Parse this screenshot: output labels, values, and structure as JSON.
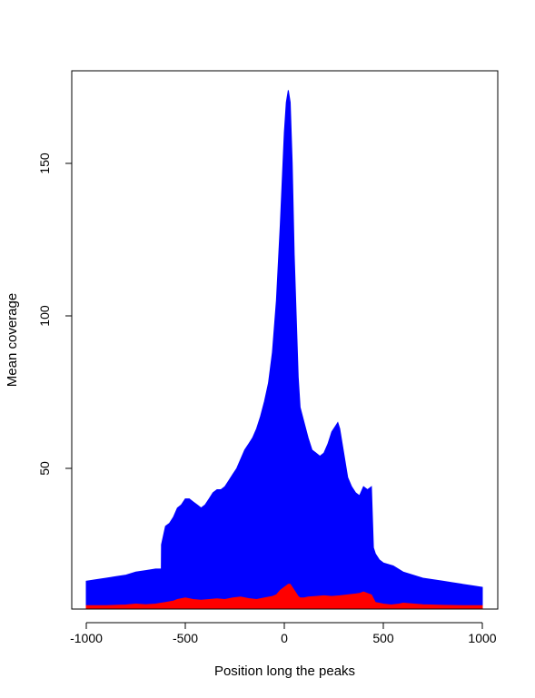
{
  "chart_data": {
    "type": "area",
    "title": "",
    "xlabel": "Position long the peaks",
    "ylabel": "Mean coverage",
    "xlim": [
      -1000,
      1000
    ],
    "ylim": [
      5,
      175
    ],
    "x_ticks": [
      -1000,
      -500,
      0,
      500,
      1000
    ],
    "y_ticks": [
      50,
      100,
      150
    ],
    "x_tick_labels": [
      "-1000",
      "-500",
      "0",
      "500",
      "1000"
    ],
    "y_tick_labels": [
      "50",
      "100",
      "150"
    ],
    "grid": false,
    "legend": "none",
    "series": [
      {
        "color": "#0000ff",
        "x": [
          -1000,
          -950,
          -900,
          -850,
          -800,
          -750,
          -700,
          -650,
          -621,
          -620,
          -600,
          -580,
          -560,
          -540,
          -520,
          -500,
          -480,
          -460,
          -440,
          -420,
          -400,
          -380,
          -360,
          -340,
          -320,
          -300,
          -280,
          -260,
          -240,
          -220,
          -200,
          -180,
          -160,
          -140,
          -120,
          -100,
          -80,
          -60,
          -40,
          -20,
          0,
          10,
          20,
          30,
          40,
          50,
          60,
          70,
          80,
          100,
          120,
          140,
          160,
          180,
          200,
          220,
          240,
          260,
          270,
          280,
          300,
          320,
          340,
          360,
          380,
          400,
          420,
          440,
          450,
          460,
          480,
          500,
          550,
          600,
          650,
          700,
          750,
          800,
          850,
          900,
          950,
          1000
        ],
        "y": [
          13,
          13.5,
          14,
          14.5,
          15,
          16,
          16.5,
          17,
          17,
          25,
          31,
          32,
          34,
          37,
          38,
          40,
          40,
          39,
          38,
          37,
          38,
          40,
          42,
          43,
          43,
          44,
          46,
          48,
          50,
          53,
          56,
          58,
          60,
          63,
          67,
          72,
          78,
          88,
          105,
          130,
          160,
          170,
          174,
          170,
          150,
          120,
          100,
          80,
          70,
          65,
          60,
          56,
          55,
          54,
          55,
          58,
          62,
          64,
          65,
          63,
          55,
          47,
          44,
          42,
          41,
          44,
          43,
          44,
          24,
          22,
          20,
          19,
          18,
          16,
          15,
          14,
          13.5,
          13,
          12.5,
          12,
          11.5,
          11
        ]
      },
      {
        "color": "#ff0000",
        "x": [
          -1000,
          -900,
          -800,
          -750,
          -700,
          -650,
          -600,
          -560,
          -540,
          -500,
          -460,
          -420,
          -380,
          -340,
          -300,
          -260,
          -220,
          -180,
          -140,
          -100,
          -60,
          -40,
          -20,
          0,
          10,
          20,
          30,
          40,
          50,
          60,
          70,
          80,
          100,
          120,
          160,
          200,
          240,
          280,
          320,
          360,
          380,
          400,
          420,
          440,
          460,
          500,
          540,
          580,
          600,
          700,
          800,
          900,
          1000
        ],
        "y": [
          5,
          5,
          5.2,
          5.5,
          5.3,
          5.5,
          6,
          6.5,
          7,
          7.5,
          7,
          6.8,
          7,
          7.2,
          7,
          7.5,
          7.8,
          7.3,
          7,
          7.5,
          8,
          8.5,
          10,
          11,
          11.5,
          12,
          12,
          11,
          10,
          9,
          8,
          7.5,
          7.5,
          7.8,
          8,
          8.2,
          8,
          8.2,
          8.5,
          8.8,
          9,
          9.5,
          9,
          8.5,
          6,
          5.5,
          5.2,
          5.5,
          5.8,
          5.3,
          5.1,
          5,
          5
        ]
      }
    ]
  }
}
